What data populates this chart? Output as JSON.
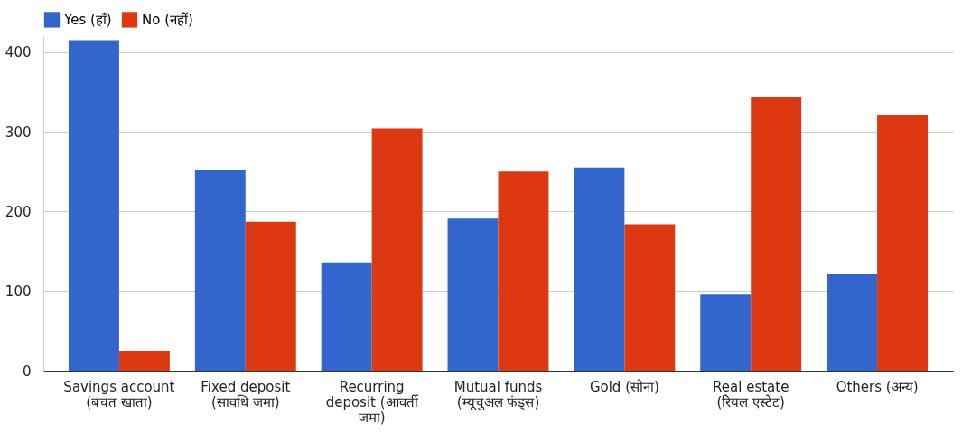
{
  "chart_data": {
    "type": "bar",
    "categories": [
      "Savings account (बचत खाता)",
      "Fixed deposit (सावधि जमा)",
      "Recurring deposit (आवर्ती जमा)",
      "Mutual funds (म्यूचुअल फंड्स)",
      "Gold (सोना)",
      "Real estate (रियल एस्टेट)",
      "Others (अन्य)"
    ],
    "series": [
      {
        "name": "Yes (हाँ)",
        "color": "#3366cc",
        "values": [
          415,
          252,
          136,
          191,
          255,
          96,
          121
        ]
      },
      {
        "name": "No (नहीं)",
        "color": "#dc3912",
        "values": [
          25,
          187,
          304,
          250,
          184,
          344,
          321
        ]
      }
    ],
    "ylim": [
      0,
      420
    ],
    "yticks": [
      0,
      100,
      200,
      300,
      400
    ],
    "grid": "y",
    "legend": "top left"
  }
}
